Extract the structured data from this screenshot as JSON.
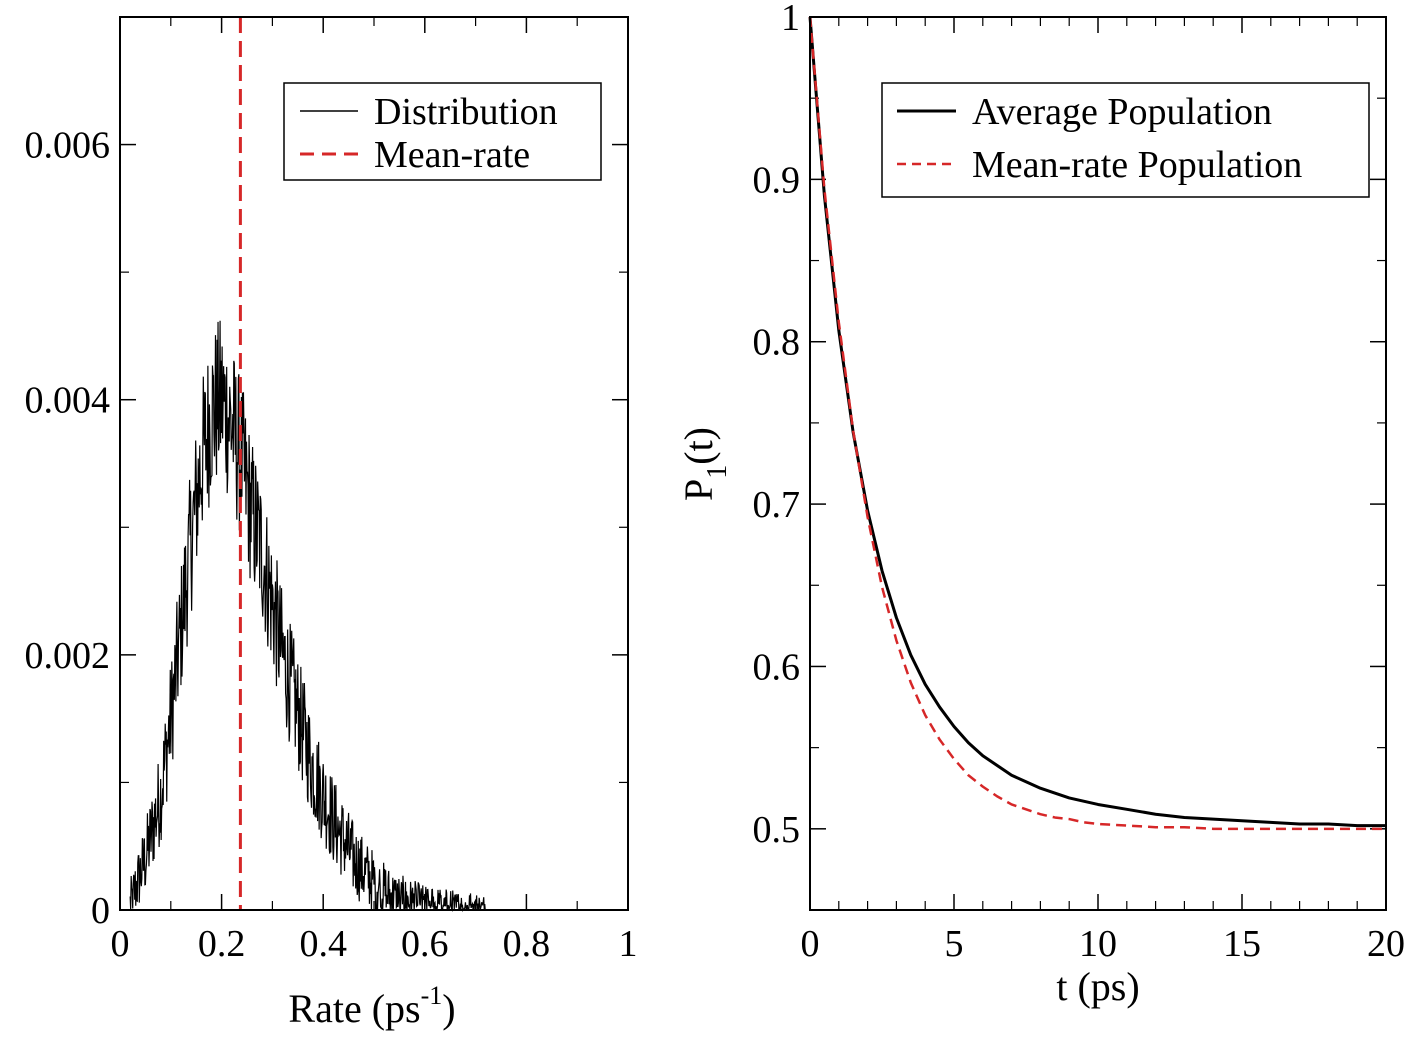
{
  "chart_data": [
    {
      "type": "line",
      "panel": "left",
      "title": "",
      "xlabel": "Rate (ps",
      "xlabel_superscript": "-1",
      "xlabel_suffix": ")",
      "ylabel": "",
      "xlim": [
        0,
        1
      ],
      "ylim": [
        0,
        0.007
      ],
      "xticks": [
        "0",
        "0.2",
        "0.4",
        "0.6",
        "0.8",
        "1"
      ],
      "yticks": [
        "0",
        "0.002",
        "0.004",
        "0.006"
      ],
      "legend_position": "top-right",
      "series": [
        {
          "name": "Distribution",
          "style": "solid",
          "color": "#000000",
          "envelope": {
            "x": [
              0.02,
              0.05,
              0.08,
              0.1,
              0.12,
              0.14,
              0.16,
              0.18,
              0.2,
              0.22,
              0.24,
              0.26,
              0.28,
              0.3,
              0.32,
              0.34,
              0.36,
              0.38,
              0.4,
              0.42,
              0.44,
              0.46,
              0.48,
              0.5,
              0.52,
              0.54,
              0.56,
              0.58,
              0.6,
              0.63,
              0.66,
              0.7,
              0.72
            ],
            "mean": [
              5e-05,
              0.0004,
              0.0009,
              0.0015,
              0.0022,
              0.0029,
              0.0035,
              0.0039,
              0.004,
              0.0038,
              0.0035,
              0.0031,
              0.0028,
              0.0024,
              0.002,
              0.0017,
              0.0014,
              0.0011,
              0.0009,
              0.0007,
              0.00055,
              0.0004,
              0.0003,
              0.00022,
              0.00015,
              0.0001,
              7e-05,
              5e-05,
              3e-05,
              2e-05,
              1e-05,
              5e-06,
              0.0
            ],
            "noise_amplitude": 0.00055,
            "sample_count": 700
          }
        },
        {
          "name": "Mean-rate",
          "style": "dashed",
          "color": "#d62728",
          "vertical_line_x": 0.237
        }
      ]
    },
    {
      "type": "line",
      "panel": "right",
      "title": "",
      "xlabel": "t (ps)",
      "ylabel": "P",
      "ylabel_subscript": "1",
      "ylabel_suffix": "(t)",
      "xlim": [
        0,
        20
      ],
      "ylim": [
        0.45,
        1.0
      ],
      "xticks": [
        "0",
        "5",
        "10",
        "15",
        "20"
      ],
      "yticks": [
        "0.5",
        "0.6",
        "0.7",
        "0.8",
        "0.9",
        "1"
      ],
      "legend_position": "top-right",
      "series": [
        {
          "name": "Average Population",
          "style": "solid",
          "color": "#000000",
          "x": [
            0,
            0.5,
            1,
            1.5,
            2,
            2.5,
            3,
            3.5,
            4,
            4.5,
            5,
            5.5,
            6,
            6.5,
            7,
            7.5,
            8,
            8.5,
            9,
            9.5,
            10,
            11,
            12,
            13,
            14,
            15,
            16,
            17,
            18,
            19,
            20
          ],
          "y": [
            1.0,
            0.89,
            0.807,
            0.744,
            0.696,
            0.659,
            0.63,
            0.607,
            0.589,
            0.575,
            0.563,
            0.553,
            0.545,
            0.539,
            0.533,
            0.529,
            0.525,
            0.522,
            0.519,
            0.517,
            0.515,
            0.512,
            0.509,
            0.507,
            0.506,
            0.505,
            0.504,
            0.503,
            0.503,
            0.502,
            0.502
          ]
        },
        {
          "name": "Mean-rate Population",
          "style": "dashed",
          "color": "#d62728",
          "x": [
            0,
            0.5,
            1,
            1.5,
            2,
            2.5,
            3,
            3.5,
            4,
            4.5,
            5,
            5.5,
            6,
            6.5,
            7,
            7.5,
            8,
            8.5,
            9,
            9.5,
            10,
            11,
            12,
            13,
            14,
            15,
            16,
            17,
            18,
            19,
            20
          ],
          "y": [
            1.0,
            0.894,
            0.812,
            0.745,
            0.692,
            0.649,
            0.616,
            0.59,
            0.57,
            0.555,
            0.543,
            0.533,
            0.526,
            0.52,
            0.515,
            0.512,
            0.509,
            0.507,
            0.506,
            0.504,
            0.503,
            0.502,
            0.501,
            0.501,
            0.5,
            0.5,
            0.5,
            0.5,
            0.5,
            0.5,
            0.5
          ]
        }
      ]
    }
  ]
}
